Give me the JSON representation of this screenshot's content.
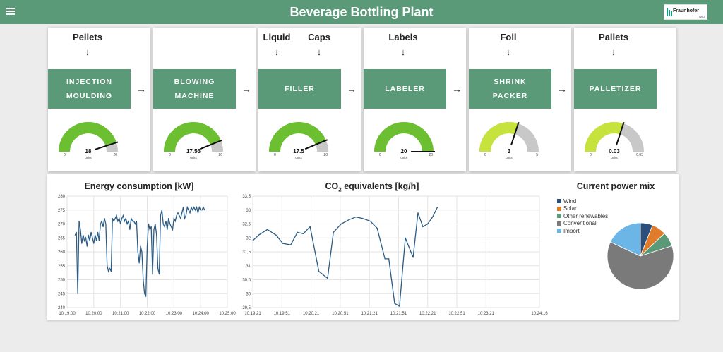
{
  "header": {
    "title": "Beverage Bottling Plant",
    "logo_text": "Fraunhofer",
    "logo_sub": "IWU",
    "color": "#5a9a78"
  },
  "stages": [
    {
      "inputs": [
        "Pellets"
      ],
      "machine": "INJECTION\nMOULDING",
      "gauge": {
        "value": "18",
        "unit": "units",
        "min": "0",
        "max": "20",
        "fraction": 0.9,
        "color": "#6bbf30"
      }
    },
    {
      "inputs": [],
      "machine": "BLOWING\nMACHINE",
      "gauge": {
        "value": "17.56",
        "unit": "units",
        "min": "0",
        "max": "20",
        "fraction": 0.878,
        "color": "#6bbf30"
      }
    },
    {
      "inputs": [
        "Liquid",
        "Caps"
      ],
      "machine": "FILLER",
      "gauge": {
        "value": "17.5",
        "unit": "units",
        "min": "0",
        "max": "20",
        "fraction": 0.875,
        "color": "#6bbf30"
      }
    },
    {
      "inputs": [
        "Labels"
      ],
      "machine": "LABELER",
      "gauge": {
        "value": "20",
        "unit": "units",
        "min": "0",
        "max": "20",
        "fraction": 1.0,
        "color": "#6bbf30"
      }
    },
    {
      "inputs": [
        "Foil"
      ],
      "machine": "SHRINK\nPACKER",
      "gauge": {
        "value": "3",
        "unit": "units",
        "min": "0",
        "max": "5",
        "fraction": 0.6,
        "color": "#c6e23c"
      }
    },
    {
      "inputs": [
        "Pallets"
      ],
      "machine": "PALLETIZER",
      "gauge": {
        "value": "0.03",
        "unit": "units",
        "min": "0",
        "max": "0.05",
        "fraction": 0.6,
        "color": "#c6e23c"
      }
    }
  ],
  "flow_arrow": "→",
  "down_arrow": "↓",
  "chart_data": [
    {
      "type": "line",
      "title": "Energy consumption [kW]",
      "ylim": [
        240,
        280
      ],
      "yticks": [
        "240",
        "245",
        "250",
        "255",
        "260",
        "265",
        "270",
        "275",
        "280"
      ],
      "xticks": [
        "10:19:00",
        "10:20:00",
        "10:21:00",
        "10:22:00",
        "10:23:00",
        "10:24:00",
        "10:25:00"
      ],
      "x_minutes": [
        0.3,
        0.35,
        0.4,
        0.45,
        0.5,
        0.55,
        0.6,
        0.65,
        0.7,
        0.75,
        0.8,
        0.85,
        0.9,
        0.95,
        1.0,
        1.05,
        1.1,
        1.15,
        1.2,
        1.25,
        1.3,
        1.35,
        1.4,
        1.45,
        1.5,
        1.55,
        1.6,
        1.65,
        1.7,
        1.75,
        1.8,
        1.85,
        1.9,
        1.95,
        2.0,
        2.05,
        2.1,
        2.15,
        2.2,
        2.25,
        2.3,
        2.35,
        2.4,
        2.45,
        2.5,
        2.55,
        2.6,
        2.65,
        2.7,
        2.75,
        2.8,
        2.85,
        2.9,
        2.95,
        3.0,
        3.05,
        3.1,
        3.15,
        3.2,
        3.25,
        3.3,
        3.35,
        3.4,
        3.45,
        3.5,
        3.55,
        3.6,
        3.65,
        3.7,
        3.75,
        3.8,
        3.85,
        3.9,
        3.95,
        4.0,
        4.05,
        4.1,
        4.15,
        4.2,
        4.25,
        4.3,
        4.35,
        4.4,
        4.45,
        4.5,
        4.55,
        4.6,
        4.65,
        4.7,
        4.75,
        4.8,
        4.85,
        4.9,
        4.95,
        5.0,
        5.05,
        5.1,
        5.15
      ],
      "values": [
        266,
        267,
        245,
        271,
        268,
        263,
        266,
        264,
        265,
        262,
        266,
        264,
        267,
        265,
        263,
        266,
        264,
        267,
        264,
        270,
        271,
        269,
        272,
        270,
        255,
        253,
        254,
        253,
        272,
        271,
        272,
        273,
        271,
        272,
        270,
        272,
        273,
        271,
        272,
        270,
        271,
        268,
        272,
        271,
        271,
        270,
        271,
        260,
        256,
        262,
        260,
        250,
        245,
        244,
        262,
        270,
        268,
        269,
        252,
        268,
        270,
        266,
        254,
        252,
        273,
        275,
        270,
        269,
        271,
        268,
        272,
        270,
        269,
        268,
        272,
        271,
        273,
        274,
        273,
        272,
        274,
        276,
        272,
        273,
        276,
        275,
        274,
        276,
        275,
        276,
        275,
        276,
        274,
        276,
        275,
        275,
        276,
        275
      ]
    },
    {
      "type": "line",
      "title": "CO",
      "title_sub": "2",
      "title_rest": " equivalents [kg/h]",
      "ylim": [
        29.5,
        33.5
      ],
      "yticks": [
        "29,5",
        "30",
        "30,5",
        "31",
        "31,5",
        "32",
        "32,5",
        "33",
        "33,5"
      ],
      "xticks": [
        "10:19:21",
        "10:19:51",
        "10:20:21",
        "10:20:51",
        "10:21:21",
        "10:21:51",
        "10:22:21",
        "10:22:51",
        "10:23:21",
        "10:24:16"
      ],
      "x_seconds": [
        0,
        6,
        15,
        24,
        31,
        39,
        46,
        52,
        59,
        68,
        77,
        83,
        91,
        99,
        106,
        113,
        121,
        125,
        128,
        136,
        140,
        146,
        151,
        157,
        165,
        170,
        175,
        180,
        185,
        190
      ],
      "values": [
        31.9,
        32.1,
        32.3,
        32.1,
        31.8,
        31.75,
        32.2,
        32.15,
        32.4,
        30.8,
        30.55,
        32.2,
        32.5,
        32.65,
        32.75,
        32.7,
        32.6,
        32.45,
        32.35,
        31.25,
        31.25,
        29.65,
        29.55,
        32.0,
        31.3,
        32.9,
        32.4,
        32.5,
        32.75,
        33.1
      ]
    },
    {
      "type": "pie",
      "title": "Current power mix",
      "labels": [
        "Wind",
        "Solar",
        "Other renewables",
        "Conventional",
        "Import"
      ],
      "values": [
        6,
        7,
        7,
        62,
        18
      ],
      "colors": [
        "#2b4e7a",
        "#e07b2a",
        "#5a9a78",
        "#7a7a7a",
        "#6bb6e6"
      ]
    }
  ]
}
